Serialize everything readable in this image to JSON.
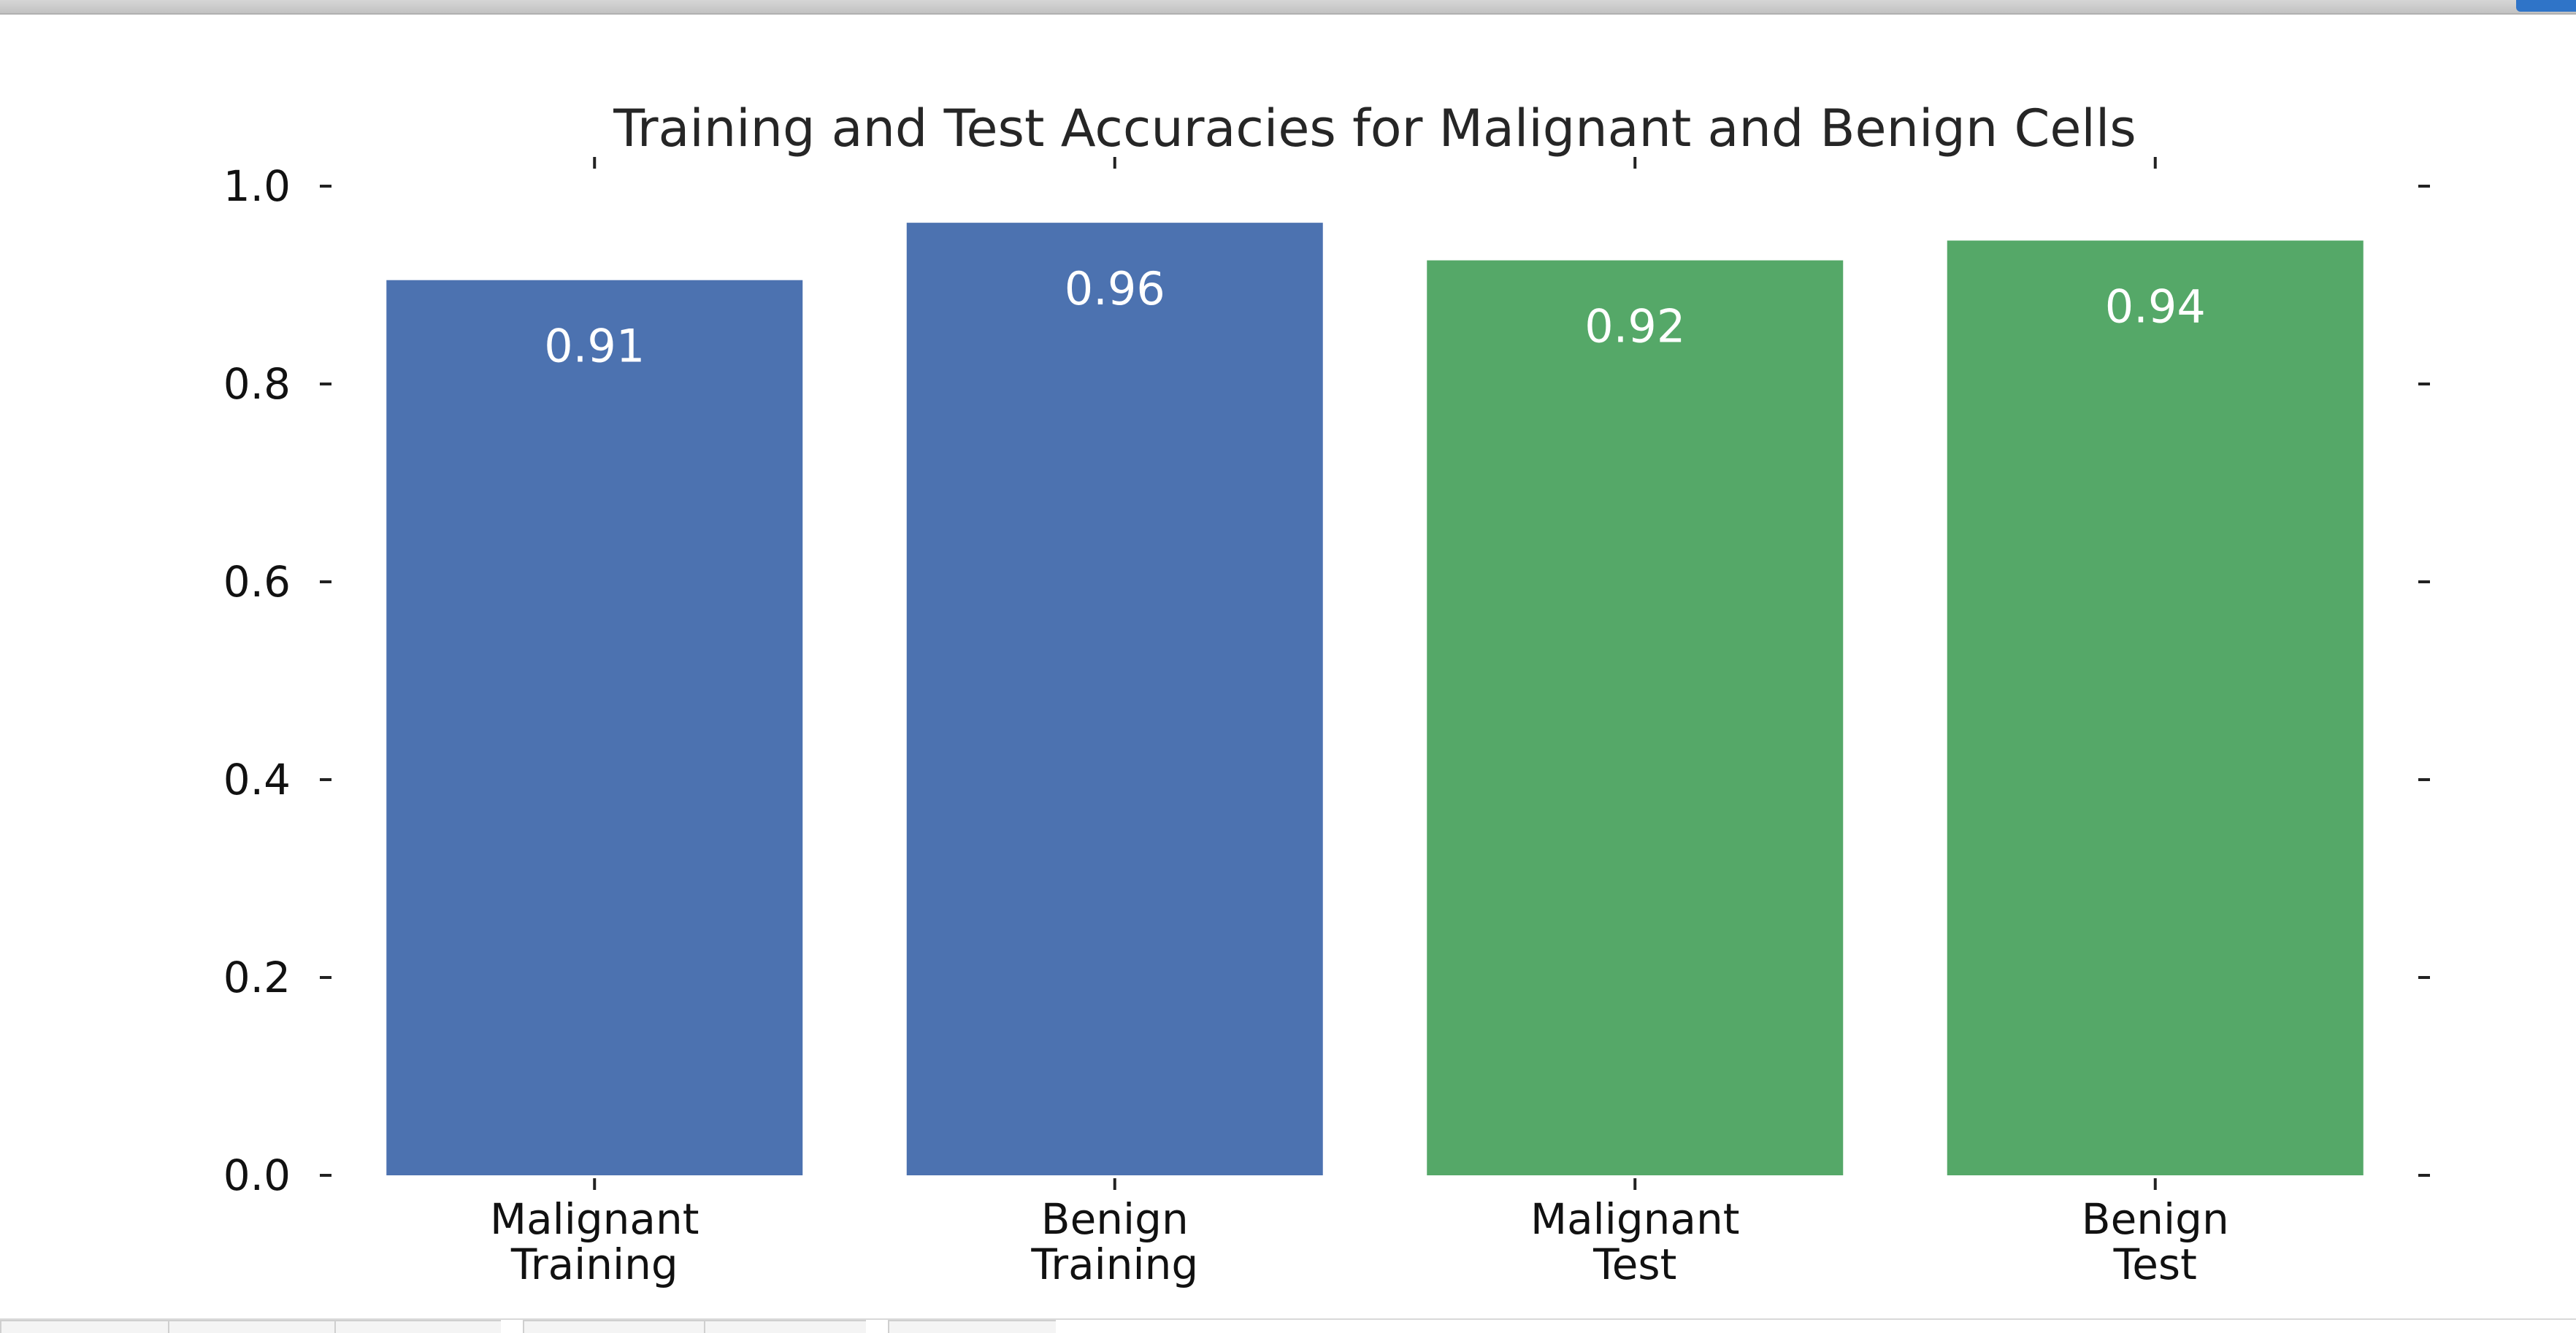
{
  "chart_data": {
    "type": "bar",
    "title": "Training and Test Accuracies for Malignant and Benign Cells",
    "xlabel": "",
    "ylabel": "",
    "ylim": [
      0,
      1.0
    ],
    "yticks": [
      "0.0",
      "0.2",
      "0.4",
      "0.6",
      "0.8",
      "1.0"
    ],
    "grid": false,
    "categories": [
      [
        "Malignant",
        "Training"
      ],
      [
        "Benign",
        "Training"
      ],
      [
        "Malignant",
        "Test"
      ],
      [
        "Benign",
        "Test"
      ]
    ],
    "values": [
      0.905,
      0.963,
      0.925,
      0.945
    ],
    "value_labels": [
      "0.91",
      "0.96",
      "0.92",
      "0.94"
    ],
    "colors": [
      "#4c72b0",
      "#4c72b0",
      "#55a868",
      "#55a868"
    ]
  }
}
